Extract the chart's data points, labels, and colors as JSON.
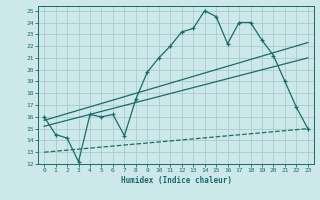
{
  "xlabel": "Humidex (Indice chaleur)",
  "background_color": "#cce8e8",
  "grid_color": "#aacccc",
  "line_color": "#1a6b6b",
  "xlim": [
    -0.5,
    23.5
  ],
  "ylim": [
    12,
    25.4
  ],
  "xticks": [
    0,
    1,
    2,
    3,
    4,
    5,
    6,
    7,
    8,
    9,
    10,
    11,
    12,
    13,
    14,
    15,
    16,
    17,
    18,
    19,
    20,
    21,
    22,
    23
  ],
  "yticks": [
    12,
    13,
    14,
    15,
    16,
    17,
    18,
    19,
    20,
    21,
    22,
    23,
    24,
    25
  ],
  "line_jagged": {
    "x": [
      0,
      1,
      2,
      3,
      4,
      5,
      6,
      7,
      8,
      9,
      10,
      11,
      12,
      13,
      14,
      15,
      16,
      17,
      18,
      19,
      20,
      21,
      22,
      23
    ],
    "y": [
      16.0,
      14.5,
      14.2,
      12.2,
      16.2,
      16.0,
      16.2,
      14.4,
      17.5,
      19.8,
      21.0,
      22.0,
      23.2,
      23.5,
      25.0,
      24.5,
      22.2,
      24.0,
      24.0,
      22.5,
      21.2,
      19.0,
      16.8,
      15.0
    ]
  },
  "line_upper_straight": {
    "x": [
      0,
      23
    ],
    "y": [
      15.7,
      22.3
    ]
  },
  "line_middle_straight": {
    "x": [
      0,
      23
    ],
    "y": [
      15.2,
      21.0
    ]
  },
  "line_lower_dashed": {
    "x": [
      0,
      23
    ],
    "y": [
      13.0,
      15.0
    ]
  }
}
